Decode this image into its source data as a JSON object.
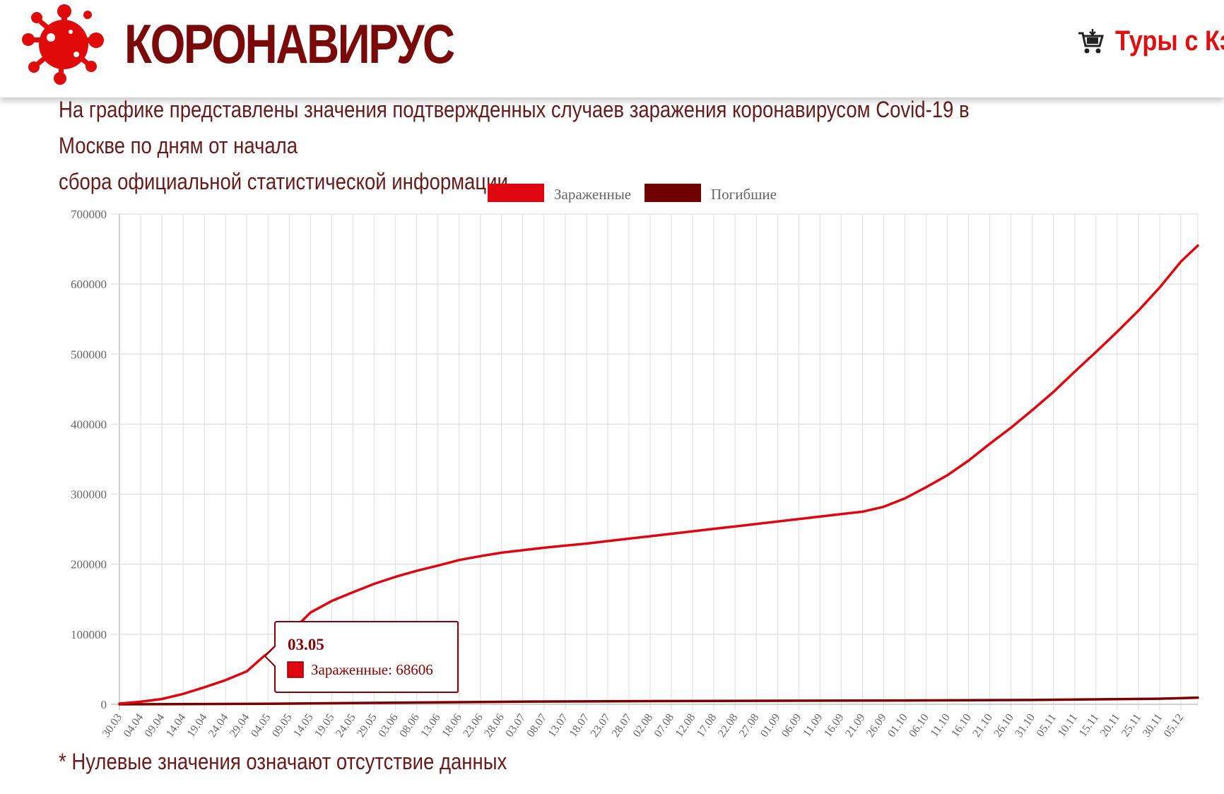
{
  "header": {
    "brand": "КОРОНАВИРУС",
    "logo_icon": "virus-logo-icon",
    "tours_link": "Туры с Кэш",
    "tours_icon": "cart-icon",
    "colors": {
      "brand": "#7a0a0a",
      "link": "#e01010"
    }
  },
  "intro": {
    "line1": "На графике представлены значения подтвержденных случаев заражения коронавирусом Covid-19 в Москве по дням от начала",
    "line2": "сбора официальной статистической информации."
  },
  "footnote": "* Нулевые значения означают отсутствие данных",
  "chart_data": {
    "type": "line",
    "title": "",
    "xlabel": "",
    "ylabel": "",
    "ylim": [
      0,
      700000
    ],
    "yticks": [
      0,
      100000,
      200000,
      300000,
      400000,
      500000,
      600000,
      700000
    ],
    "x_tick_labels": [
      "30.03",
      "04.04",
      "09.04",
      "14.04",
      "19.04",
      "24.04",
      "29.04",
      "04.05",
      "09.05",
      "14.05",
      "19.05",
      "24.05",
      "29.05",
      "03.06",
      "08.06",
      "13.06",
      "18.06",
      "23.06",
      "28.06",
      "03.07",
      "08.07",
      "13.07",
      "18.07",
      "23.07",
      "28.07",
      "02.08",
      "07.08",
      "12.08",
      "17.08",
      "22.08",
      "27.08",
      "01.09",
      "06.09",
      "11.09",
      "16.09",
      "21.09",
      "26.09",
      "01.10",
      "06.10",
      "11.10",
      "16.10",
      "21.10",
      "26.10",
      "31.10",
      "05.11",
      "10.11",
      "15.11",
      "20.11",
      "25.11",
      "30.11",
      "05.12"
    ],
    "x_range": [
      "30.03",
      "09.12"
    ],
    "grid": true,
    "legend_position": "top-center",
    "series": [
      {
        "name": "Зараженные",
        "color": "#e0060f",
        "points": [
          [
            "30.03",
            1000
          ],
          [
            "04.04",
            3600
          ],
          [
            "09.04",
            7600
          ],
          [
            "14.04",
            14800
          ],
          [
            "19.04",
            24300
          ],
          [
            "24.04",
            34500
          ],
          [
            "29.04",
            47000
          ],
          [
            "03.05",
            68606
          ],
          [
            "04.05",
            73000
          ],
          [
            "09.05",
            101000
          ],
          [
            "14.05",
            131000
          ],
          [
            "19.05",
            147500
          ],
          [
            "24.05",
            160000
          ],
          [
            "29.05",
            172000
          ],
          [
            "03.06",
            182000
          ],
          [
            "08.06",
            190500
          ],
          [
            "13.06",
            198000
          ],
          [
            "18.06",
            206000
          ],
          [
            "23.06",
            211500
          ],
          [
            "28.06",
            216500
          ],
          [
            "03.07",
            220000
          ],
          [
            "08.07",
            223500
          ],
          [
            "13.07",
            226500
          ],
          [
            "18.07",
            229500
          ],
          [
            "23.07",
            233000
          ],
          [
            "28.07",
            236500
          ],
          [
            "02.08",
            240000
          ],
          [
            "07.08",
            243500
          ],
          [
            "12.08",
            247000
          ],
          [
            "17.08",
            250500
          ],
          [
            "22.08",
            254000
          ],
          [
            "27.08",
            257500
          ],
          [
            "01.09",
            261000
          ],
          [
            "06.09",
            264500
          ],
          [
            "11.09",
            268000
          ],
          [
            "16.09",
            271500
          ],
          [
            "21.09",
            275000
          ],
          [
            "26.09",
            282000
          ],
          [
            "01.10",
            294000
          ],
          [
            "06.10",
            310000
          ],
          [
            "11.10",
            327000
          ],
          [
            "16.10",
            348000
          ],
          [
            "21.10",
            372000
          ],
          [
            "26.10",
            395000
          ],
          [
            "31.10",
            420000
          ],
          [
            "05.11",
            446000
          ],
          [
            "10.11",
            475000
          ],
          [
            "15.11",
            503000
          ],
          [
            "20.11",
            532000
          ],
          [
            "25.11",
            562000
          ],
          [
            "30.11",
            595000
          ],
          [
            "05.12",
            632000
          ],
          [
            "09.12",
            655000
          ]
        ]
      },
      {
        "name": "Погибшие",
        "color": "#7a0000",
        "points": [
          [
            "30.03",
            0
          ],
          [
            "04.05",
            700
          ],
          [
            "03.06",
            2300
          ],
          [
            "03.07",
            3800
          ],
          [
            "02.08",
            4500
          ],
          [
            "01.09",
            5000
          ],
          [
            "01.10",
            5400
          ],
          [
            "31.10",
            6200
          ],
          [
            "30.11",
            8000
          ],
          [
            "09.12",
            9500
          ]
        ]
      }
    ],
    "tooltip": {
      "title": "03.05",
      "series": "Зараженные",
      "value": 68606,
      "label": "Зараженные: 68606"
    }
  }
}
